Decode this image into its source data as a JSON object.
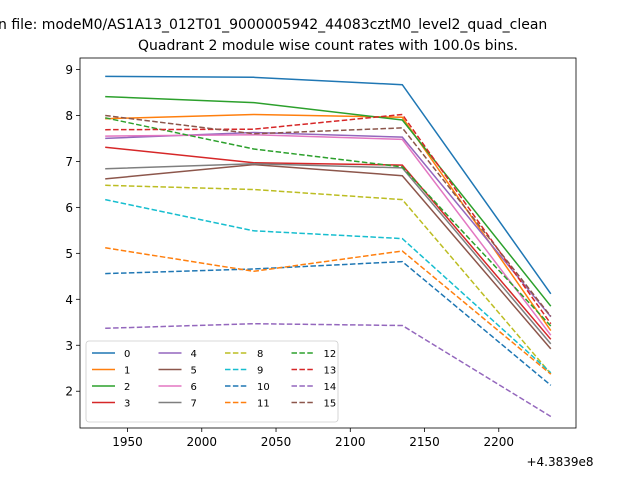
{
  "chart_data": {
    "type": "line",
    "suptitle": "n file: modeM0/AS1A13_012T01_9000005942_44083cztM0_level2_quad_clean",
    "title": "Quadrant 2 module wise count rates with 100.0s bins.",
    "xlabel": "",
    "ylabel": "",
    "x_offset_label": "+4.3839e8",
    "x": [
      1935,
      2035,
      2135,
      2235
    ],
    "xlim": [
      1918,
      2252
    ],
    "ylim": [
      1.2,
      9.25
    ],
    "x_ticks": [
      1950,
      2000,
      2050,
      2100,
      2150,
      2200
    ],
    "y_ticks": [
      2,
      3,
      4,
      5,
      6,
      7,
      8,
      9
    ],
    "grid": false,
    "legend": {
      "location": "lower-left",
      "columns": 4
    },
    "series": [
      {
        "name": "0",
        "color": "#1f77b4",
        "dash": "solid",
        "values": [
          8.85,
          8.83,
          8.67,
          4.12
        ]
      },
      {
        "name": "1",
        "color": "#ff7f0e",
        "dash": "solid",
        "values": [
          7.93,
          8.02,
          7.96,
          3.32
        ]
      },
      {
        "name": "2",
        "color": "#2ca02c",
        "dash": "solid",
        "values": [
          8.41,
          8.28,
          7.9,
          3.85
        ]
      },
      {
        "name": "3",
        "color": "#d62728",
        "dash": "solid",
        "values": [
          7.31,
          6.97,
          6.92,
          3.13
        ]
      },
      {
        "name": "4",
        "color": "#9467bd",
        "dash": "solid",
        "values": [
          7.5,
          7.63,
          7.53,
          3.62
        ]
      },
      {
        "name": "5",
        "color": "#8c564b",
        "dash": "solid",
        "values": [
          6.62,
          6.93,
          6.69,
          2.92
        ]
      },
      {
        "name": "6",
        "color": "#e377c2",
        "dash": "solid",
        "values": [
          7.55,
          7.58,
          7.48,
          3.22
        ]
      },
      {
        "name": "7",
        "color": "#7f7f7f",
        "dash": "solid",
        "values": [
          6.84,
          6.95,
          6.86,
          3.03
        ]
      },
      {
        "name": "8",
        "color": "#bcbd22",
        "dash": "dashed",
        "values": [
          6.48,
          6.39,
          6.17,
          2.38
        ]
      },
      {
        "name": "9",
        "color": "#17becf",
        "dash": "dashed",
        "values": [
          6.17,
          5.49,
          5.32,
          2.4
        ]
      },
      {
        "name": "10",
        "color": "#1f77b4",
        "dash": "dashed",
        "values": [
          4.56,
          4.66,
          4.82,
          2.13
        ]
      },
      {
        "name": "11",
        "color": "#ff7f0e",
        "dash": "dashed",
        "values": [
          5.12,
          4.61,
          5.05,
          2.37
        ]
      },
      {
        "name": "12",
        "color": "#2ca02c",
        "dash": "dashed",
        "values": [
          7.95,
          7.27,
          6.88,
          3.42
        ]
      },
      {
        "name": "13",
        "color": "#d62728",
        "dash": "dashed",
        "values": [
          7.69,
          7.7,
          8.02,
          3.47
        ]
      },
      {
        "name": "14",
        "color": "#9467bd",
        "dash": "dashed",
        "values": [
          3.37,
          3.47,
          3.43,
          1.45
        ]
      },
      {
        "name": "15",
        "color": "#8c564b",
        "dash": "dashed",
        "values": [
          8.0,
          7.6,
          7.73,
          3.63
        ]
      }
    ]
  }
}
